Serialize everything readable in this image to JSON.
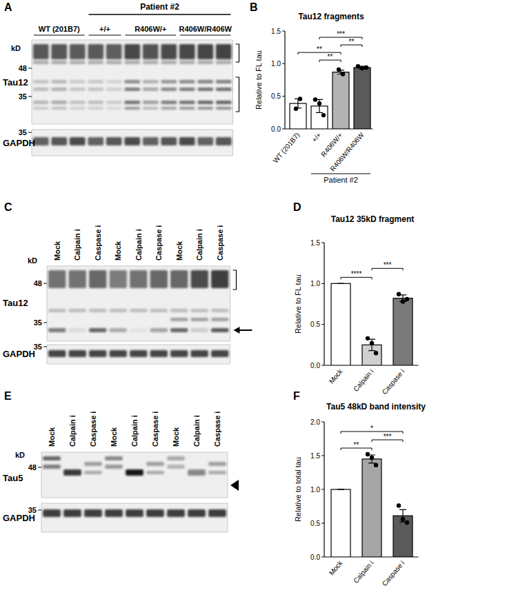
{
  "panel_letters": [
    "A",
    "B",
    "C",
    "D",
    "E",
    "F"
  ],
  "blots": [
    {
      "group_title": "Patient #2",
      "groups": [
        "WT (201B7)",
        "+/+",
        "R406W/+",
        "R406W/R406W"
      ],
      "unit": "kD",
      "rows": [
        {
          "label": "Tau12",
          "markers": [
            48,
            35
          ]
        },
        {
          "label": "GAPDH",
          "markers": [
            35
          ]
        }
      ]
    },
    {
      "lanes": [
        "Mock",
        "Calpain i",
        "Caspase i",
        "Mock",
        "Calpain i",
        "Caspase i",
        "Mock",
        "Calpain i",
        "Caspase i"
      ],
      "unit": "kD",
      "rows": [
        {
          "label": "Tau12",
          "markers": [
            48,
            35
          ]
        },
        {
          "label": "GAPDH",
          "markers": [
            35
          ]
        }
      ]
    },
    {
      "lanes": [
        "Mock",
        "Calpain i",
        "Caspase i",
        "Mock",
        "Calpain i",
        "Caspase i",
        "Mock",
        "Calpain i",
        "Caspase i"
      ],
      "unit": "kD",
      "rows": [
        {
          "label": "Tau5",
          "markers": [
            48
          ]
        },
        {
          "label": "GAPDH",
          "markers": [
            35
          ]
        }
      ]
    }
  ],
  "chart_data": [
    {
      "type": "bar",
      "title": "Tau12 fragments",
      "y_label": "Relative to FL tau",
      "categories": [
        "WT (201B7)",
        "+/+",
        "R406W/+",
        "R406W/R406W"
      ],
      "values": [
        0.39,
        0.35,
        0.87,
        0.94
      ],
      "errors": [
        0.07,
        0.1,
        0.03,
        0.02
      ],
      "points": [
        [
          0.31,
          0.46
        ],
        [
          0.45,
          0.39,
          0.21
        ],
        [
          0.91,
          0.84
        ],
        [
          0.96,
          0.93,
          0.94
        ]
      ],
      "colors": [
        "#ffffff",
        "#ffffff",
        "#b3b3b3",
        "#5a5a5a"
      ],
      "ylim": [
        0,
        1.5
      ],
      "yticks": [
        {
          "value": 0,
          "label": "0.0"
        },
        {
          "value": 0.5,
          "label": "0.5"
        },
        {
          "value": 1,
          "label": "1.0"
        },
        {
          "value": 1.5,
          "label": "1.5"
        }
      ],
      "group": {
        "label": "Patient #2",
        "from": 1,
        "to": 3
      },
      "comparisons": [
        {
          "pair": [
            1,
            2
          ],
          "label": "**"
        },
        {
          "pair": [
            0,
            2
          ],
          "label": "**"
        },
        {
          "pair": [
            2,
            3
          ],
          "label": "**"
        },
        {
          "pair": [
            1,
            3
          ],
          "label": "***"
        }
      ]
    },
    {
      "type": "bar",
      "title": "Tau12 35kD fragment",
      "y_label": "Relative to FL tau",
      "categories": [
        "Mock",
        "Calpain i",
        "Caspase i"
      ],
      "values": [
        1.0,
        0.25,
        0.82
      ],
      "errors": [
        0,
        0.07,
        0.04
      ],
      "points": [
        [],
        [
          0.33,
          0.27,
          0.15
        ],
        [
          0.87,
          0.78,
          0.81
        ]
      ],
      "colors": [
        "#ffffff",
        "#d0d0d0",
        "#7a7a7a"
      ],
      "ylim": [
        0,
        1.5
      ],
      "yticks": [
        {
          "value": 0,
          "label": "0.0"
        },
        {
          "value": 0.5,
          "label": "0.5"
        },
        {
          "value": 1,
          "label": "1.0"
        },
        {
          "value": 1.5,
          "label": "1.5"
        }
      ],
      "comparisons": [
        {
          "pair": [
            0,
            1
          ],
          "label": "****"
        },
        {
          "pair": [
            1,
            2
          ],
          "label": "***"
        }
      ]
    },
    {
      "type": "bar",
      "title": "Tau5 48kD band intensity",
      "y_label": "Relative to total tau",
      "categories": [
        "Mock",
        "Calpain i",
        "Caspase i"
      ],
      "values": [
        1.0,
        1.45,
        0.61
      ],
      "errors": [
        0,
        0.06,
        0.09
      ],
      "points": [
        [],
        [
          1.52,
          1.47,
          1.36
        ],
        [
          0.76,
          0.56,
          0.51
        ]
      ],
      "colors": [
        "#ffffff",
        "#a6a6a6",
        "#5a5a5a"
      ],
      "ylim": [
        0,
        2
      ],
      "yticks": [
        {
          "value": 0,
          "label": "0.0"
        },
        {
          "value": 0.5,
          "label": "0.5"
        },
        {
          "value": 1,
          "label": "1.0"
        },
        {
          "value": 1.5,
          "label": "1.5"
        },
        {
          "value": 2,
          "label": "2.0"
        }
      ],
      "comparisons": [
        {
          "pair": [
            0,
            1
          ],
          "label": "**"
        },
        {
          "pair": [
            1,
            2
          ],
          "label": "***"
        },
        {
          "pair": [
            0,
            2
          ],
          "label": "*"
        }
      ]
    }
  ]
}
